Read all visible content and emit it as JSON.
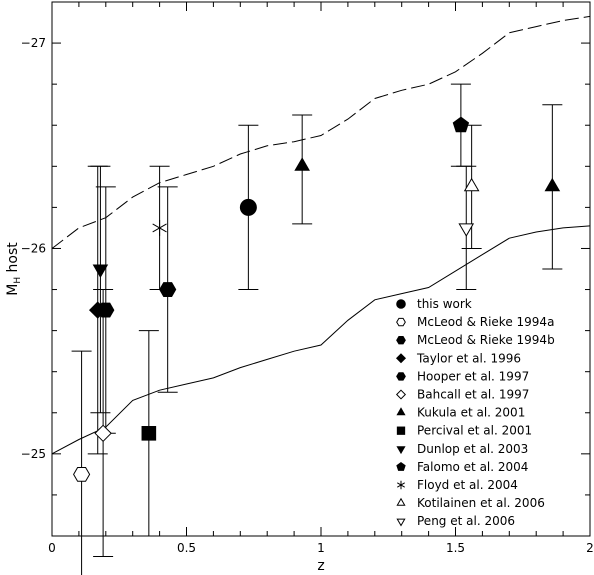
{
  "chart_data": {
    "type": "scatter",
    "title": "",
    "xlabel": "z",
    "ylabel": "M",
    "ylabel_sub": "H",
    "ylabel_suffix": " host",
    "xlim": [
      0,
      2
    ],
    "ylim": [
      -24.6,
      -27.2
    ],
    "grid": false,
    "legend_position": "bottom-right",
    "x_ticks": [
      {
        "value": 0,
        "label": "0"
      },
      {
        "value": 0.5,
        "label": "0.5"
      },
      {
        "value": 1,
        "label": "1"
      },
      {
        "value": 1.5,
        "label": "1.5"
      },
      {
        "value": 2,
        "label": "2"
      }
    ],
    "y_ticks": [
      {
        "value": -25,
        "label": "−25"
      },
      {
        "value": -26,
        "label": "−26"
      },
      {
        "value": -27,
        "label": "−27"
      }
    ],
    "curves": [
      {
        "style": "dashed",
        "points": [
          [
            0,
            -26.0
          ],
          [
            0.1,
            -26.1
          ],
          [
            0.2,
            -26.15
          ],
          [
            0.3,
            -26.25
          ],
          [
            0.4,
            -26.32
          ],
          [
            0.5,
            -26.36
          ],
          [
            0.6,
            -26.4
          ],
          [
            0.7,
            -26.46
          ],
          [
            0.8,
            -26.5
          ],
          [
            0.9,
            -26.52
          ],
          [
            1.0,
            -26.55
          ],
          [
            1.1,
            -26.63
          ],
          [
            1.2,
            -26.73
          ],
          [
            1.3,
            -26.77
          ],
          [
            1.4,
            -26.8
          ],
          [
            1.5,
            -26.86
          ],
          [
            1.6,
            -26.95
          ],
          [
            1.7,
            -27.05
          ],
          [
            1.8,
            -27.08
          ],
          [
            1.9,
            -27.11
          ],
          [
            2.0,
            -27.13
          ]
        ]
      },
      {
        "style": "solid",
        "points": [
          [
            0,
            -25.0
          ],
          [
            0.1,
            -25.07
          ],
          [
            0.2,
            -25.13
          ],
          [
            0.3,
            -25.26
          ],
          [
            0.4,
            -25.31
          ],
          [
            0.5,
            -25.34
          ],
          [
            0.6,
            -25.37
          ],
          [
            0.7,
            -25.42
          ],
          [
            0.8,
            -25.46
          ],
          [
            0.9,
            -25.5
          ],
          [
            1.0,
            -25.53
          ],
          [
            1.1,
            -25.65
          ],
          [
            1.2,
            -25.75
          ],
          [
            1.3,
            -25.78
          ],
          [
            1.4,
            -25.81
          ],
          [
            1.5,
            -25.89
          ],
          [
            1.6,
            -25.97
          ],
          [
            1.7,
            -26.05
          ],
          [
            1.8,
            -26.08
          ],
          [
            1.9,
            -26.1
          ],
          [
            2.0,
            -26.11
          ]
        ]
      }
    ],
    "points": [
      {
        "series": "McLeod & Rieke 1994a",
        "x": 0.11,
        "y": -24.9,
        "err_lo": -24.3,
        "err_hi": -25.5
      },
      {
        "series": "Taylor et al. 1996",
        "x": 0.17,
        "y": -25.7,
        "err_lo": -25.0,
        "err_hi": -26.4
      },
      {
        "series": "Dunlop et al. 2003",
        "x": 0.18,
        "y": -25.9,
        "err_lo": -25.2,
        "err_hi": -26.4
      },
      {
        "series": "Bahcall et al. 1997",
        "x": 0.19,
        "y": -25.1,
        "err_lo": -24.5,
        "err_hi": -25.8
      },
      {
        "series": "McLeod & Rieke 1994b",
        "x": 0.2,
        "y": -25.7,
        "err_lo": -25.1,
        "err_hi": -26.3
      },
      {
        "series": "Percival et al. 2001",
        "x": 0.36,
        "y": -25.1,
        "err_lo": -24.6,
        "err_hi": -25.6
      },
      {
        "series": "Floyd et al. 2004",
        "x": 0.4,
        "y": -26.1,
        "err_lo": -25.8,
        "err_hi": -26.4
      },
      {
        "series": "Hooper et al. 1997",
        "x": 0.43,
        "y": -25.8,
        "err_lo": -25.3,
        "err_hi": -26.3
      },
      {
        "series": "this work",
        "x": 0.73,
        "y": -26.2,
        "err_lo": -25.8,
        "err_hi": -26.6
      },
      {
        "series": "Kukula et al. 2001",
        "x": 0.93,
        "y": -26.4,
        "err_lo": -26.12,
        "err_hi": -26.65
      },
      {
        "series": "Falomo et al. 2004",
        "x": 1.52,
        "y": -26.6,
        "err_lo": -26.4,
        "err_hi": -26.8
      },
      {
        "series": "Peng et al. 2006",
        "x": 1.54,
        "y": -26.1,
        "err_lo": -25.8,
        "err_hi": -26.4
      },
      {
        "series": "Kotilainen et al. 2006",
        "x": 1.56,
        "y": -26.3,
        "err_lo": -26.0,
        "err_hi": -26.6
      },
      {
        "series": "Kukula et al. 2001",
        "x": 1.86,
        "y": -26.3,
        "err_lo": -25.9,
        "err_hi": -26.7
      }
    ],
    "legend": [
      {
        "label": "this work",
        "marker": "circle-filled"
      },
      {
        "label": "McLeod & Rieke 1994a",
        "marker": "hexagon-open"
      },
      {
        "label": "McLeod & Rieke 1994b",
        "marker": "hexagon-filled"
      },
      {
        "label": "Taylor et al. 1996",
        "marker": "diamond-filled"
      },
      {
        "label": "Hooper et al. 1997",
        "marker": "hexagon-filled"
      },
      {
        "label": "Bahcall et al. 1997",
        "marker": "diamond-open"
      },
      {
        "label": "Kukula et al. 2001",
        "marker": "triangle-filled"
      },
      {
        "label": "Percival et al. 2001",
        "marker": "square-filled"
      },
      {
        "label": "Dunlop et al. 2003",
        "marker": "triangle-down-filled"
      },
      {
        "label": "Falomo et al. 2004",
        "marker": "pentagon-filled"
      },
      {
        "label": "Floyd et al. 2004",
        "marker": "asterisk"
      },
      {
        "label": "Kotilainen et al. 2006",
        "marker": "triangle-open"
      },
      {
        "label": "Peng et al. 2006",
        "marker": "triangle-down-open"
      }
    ]
  }
}
